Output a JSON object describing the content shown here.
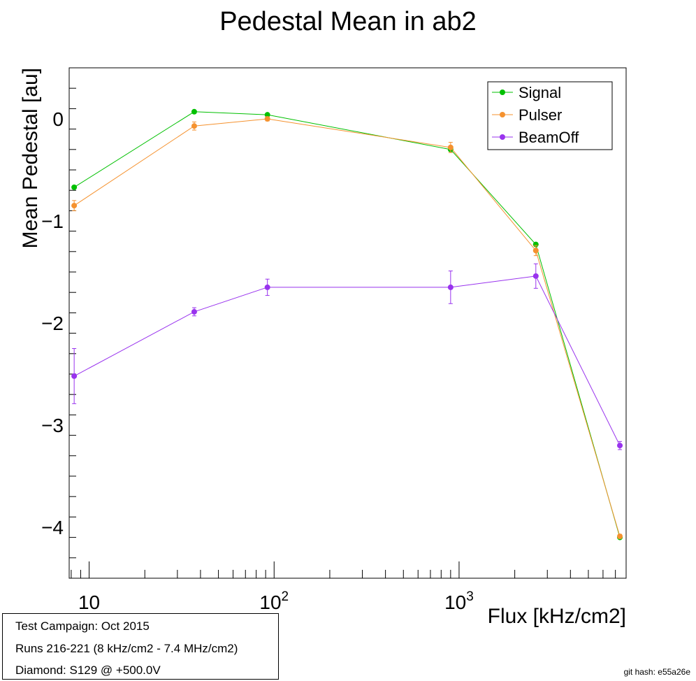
{
  "chart_data": {
    "type": "line",
    "title": "Pedestal Mean in ab2",
    "xlabel": "Flux [kHz/cm2]",
    "ylabel": "Mean Pedestal [au]",
    "xscale": "log",
    "xlim": [
      7.8,
      8000
    ],
    "ylim": [
      -4.5,
      0.5
    ],
    "x_tick_labels": [
      "10",
      "10^2",
      "10^3"
    ],
    "y_tick_labels": [
      "0",
      "−1",
      "−2",
      "−3",
      "−4"
    ],
    "y_ticks": [
      0,
      -1,
      -2,
      -3,
      -4
    ],
    "legend": {
      "position": "top-right",
      "entries": [
        "Signal",
        "Pulser",
        "BeamOff"
      ]
    },
    "grid": false,
    "series": [
      {
        "name": "Signal",
        "color": "#00c000",
        "points": [
          {
            "x": 8.3,
            "y": -0.67,
            "err": 0.0
          },
          {
            "x": 37,
            "y": 0.07,
            "err": 0.0
          },
          {
            "x": 92,
            "y": 0.04,
            "err": 0.0
          },
          {
            "x": 900,
            "y": -0.3,
            "err": 0.0
          },
          {
            "x": 2600,
            "y": -1.23,
            "err": 0.0
          },
          {
            "x": 7400,
            "y": -4.1,
            "err": 0.0
          }
        ]
      },
      {
        "name": "Pulser",
        "color": "#f5922f",
        "points": [
          {
            "x": 8.3,
            "y": -0.85,
            "err": 0.05
          },
          {
            "x": 37,
            "y": -0.07,
            "err": 0.04
          },
          {
            "x": 92,
            "y": 0.0,
            "err": 0.02
          },
          {
            "x": 900,
            "y": -0.28,
            "err": 0.05
          },
          {
            "x": 2600,
            "y": -1.29,
            "err": 0.05
          },
          {
            "x": 7400,
            "y": -4.09,
            "err": 0.02
          }
        ]
      },
      {
        "name": "BeamOff",
        "color": "#9933ee",
        "points": [
          {
            "x": 8.3,
            "y": -2.52,
            "err": 0.27
          },
          {
            "x": 37,
            "y": -1.89,
            "err": 0.04
          },
          {
            "x": 92,
            "y": -1.65,
            "err": 0.08
          },
          {
            "x": 900,
            "y": -1.65,
            "err": 0.16
          },
          {
            "x": 2600,
            "y": -1.54,
            "err": 0.12
          },
          {
            "x": 7400,
            "y": -3.2,
            "err": 0.04
          }
        ]
      }
    ]
  },
  "info": {
    "line1": "Test Campaign: Oct 2015",
    "line2": "Runs 216-221 (8 kHz/cm2 - 7.4 MHz/cm2)",
    "line3": "Diamond: S129 @ +500.0V"
  },
  "git_hash": "git hash: e55a26e"
}
